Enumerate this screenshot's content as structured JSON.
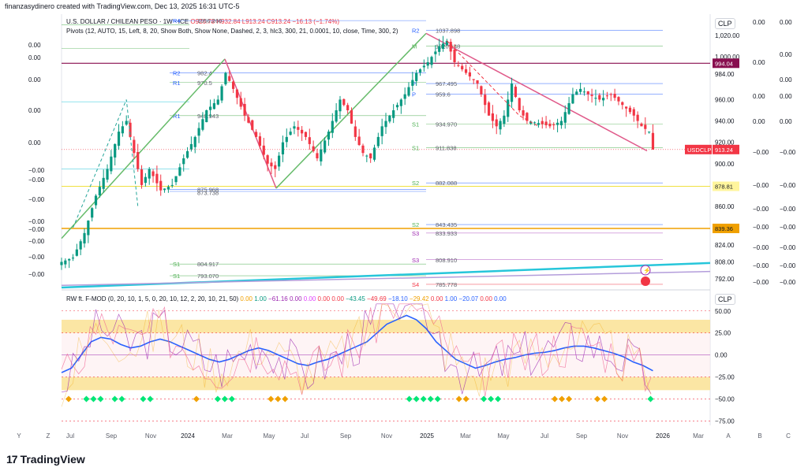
{
  "header": {
    "created_line": "finanzasydinero created with TradingView.com, Dec 13, 2025 16:31 UTC-5",
    "brand": "TradingView"
  },
  "legend": {
    "symbol": "U.S. DOLLAR / CHILEAN PESO · 1W · ICE",
    "ohlc": "O926.78 H932.84 L913.24 C913.24 −16.13 (−1.74%)",
    "pivots": "Pivots (12, AUTO, 15, Left, 8, 20, Show Both, Show None, Dashed, 2, 3, hlc3, 300, 21, 0.0001, 10, close, Time, 300, 2)",
    "indicator": "RW ft. F-MOD (0, 20, 10, 1, 5, 0, 20, 10, 12, 2, 20, 10, 21, 50)",
    "indicator_values": [
      {
        "v": "0.00",
        "c": "#f0a000"
      },
      {
        "v": "1.00",
        "c": "#089981"
      },
      {
        "v": "−61.16",
        "c": "#9c27b0"
      },
      {
        "v": "0.00",
        "c": "#9c27b0"
      },
      {
        "v": "0.00",
        "c": "#e040fb"
      },
      {
        "v": "0.00",
        "c": "#f23645"
      },
      {
        "v": "0.00",
        "c": "#f23645"
      },
      {
        "v": "−43.45",
        "c": "#089981"
      },
      {
        "v": "−49.69",
        "c": "#f23645"
      },
      {
        "v": "−18.10",
        "c": "#2962ff"
      },
      {
        "v": "−29.42",
        "c": "#f0a000"
      },
      {
        "v": "0.00",
        "c": "#f23645"
      },
      {
        "v": "1.00",
        "c": "#2962ff"
      },
      {
        "v": "−20.07",
        "c": "#2962ff"
      },
      {
        "v": "0.00",
        "c": "#f23645"
      },
      {
        "v": "0.00",
        "c": "#2962ff"
      }
    ]
  },
  "currency": "CLP",
  "colors": {
    "up": "#089981",
    "down": "#f23645",
    "pink": "#e05a8a",
    "trend": "#26c6da",
    "green": "#4caf50"
  },
  "price_boxes": [
    {
      "label": "994.04",
      "value": 994.04,
      "bg": "#880e4f",
      "text": "light"
    },
    {
      "label": "USDCLP",
      "value": 913.24,
      "bg": "#f23645",
      "text": "light"
    },
    {
      "label": "913.24",
      "value": 913.24,
      "bg": "#f23645",
      "text": "light"
    },
    {
      "label": "878.81",
      "value": 878.81,
      "bg": "#fff59d",
      "text": "dark"
    },
    {
      "label": "839.36",
      "value": 839.36,
      "bg": "#f0a000",
      "text": "dark"
    }
  ],
  "chart_data": [
    {
      "type": "candlestick",
      "title": "U.S. DOLLAR / CHILEAN PESO · 1W · ICE",
      "ylim": [
        784,
        1040
      ],
      "y_ticks": [
        "1,020.00",
        "1,000.00",
        "984.00",
        "960.00",
        "940.00",
        "920.00",
        "900.00",
        "880.00",
        "860.00",
        "840.00",
        "824.00",
        "808.00",
        "792.00"
      ],
      "x_ticks": [
        "Y",
        "Z",
        "Jul",
        "Sep",
        "Nov",
        "2024",
        "Mar",
        "May",
        "Jul",
        "Sep",
        "Nov",
        "2025",
        "Mar",
        "May",
        "Jul",
        "Sep",
        "Nov",
        "2026",
        "Mar",
        "A",
        "B",
        "C"
      ],
      "close_path": [
        {
          "t": 0,
          "v": 808
        },
        {
          "t": 3,
          "v": 812
        },
        {
          "t": 6,
          "v": 835
        },
        {
          "t": 9,
          "v": 870
        },
        {
          "t": 12,
          "v": 895
        },
        {
          "t": 15,
          "v": 930
        },
        {
          "t": 17,
          "v": 940
        },
        {
          "t": 19,
          "v": 910
        },
        {
          "t": 21,
          "v": 880
        },
        {
          "t": 23,
          "v": 895
        },
        {
          "t": 26,
          "v": 875
        },
        {
          "t": 29,
          "v": 880
        },
        {
          "t": 32,
          "v": 905
        },
        {
          "t": 35,
          "v": 925
        },
        {
          "t": 38,
          "v": 950
        },
        {
          "t": 41,
          "v": 960
        },
        {
          "t": 43,
          "v": 985
        },
        {
          "t": 45,
          "v": 970
        },
        {
          "t": 48,
          "v": 945
        },
        {
          "t": 51,
          "v": 925
        },
        {
          "t": 54,
          "v": 900
        },
        {
          "t": 56,
          "v": 895
        },
        {
          "t": 58,
          "v": 920
        },
        {
          "t": 61,
          "v": 935
        },
        {
          "t": 64,
          "v": 925
        },
        {
          "t": 67,
          "v": 905
        },
        {
          "t": 70,
          "v": 930
        },
        {
          "t": 73,
          "v": 960
        },
        {
          "t": 75,
          "v": 950
        },
        {
          "t": 77,
          "v": 925
        },
        {
          "t": 79,
          "v": 910
        },
        {
          "t": 81,
          "v": 905
        },
        {
          "t": 84,
          "v": 935
        },
        {
          "t": 87,
          "v": 950
        },
        {
          "t": 90,
          "v": 965
        },
        {
          "t": 93,
          "v": 985
        },
        {
          "t": 96,
          "v": 995
        },
        {
          "t": 99,
          "v": 1010
        },
        {
          "t": 101,
          "v": 1015
        },
        {
          "t": 103,
          "v": 995
        },
        {
          "t": 106,
          "v": 985
        },
        {
          "t": 109,
          "v": 975
        },
        {
          "t": 112,
          "v": 945
        },
        {
          "t": 114,
          "v": 935
        },
        {
          "t": 116,
          "v": 945
        },
        {
          "t": 118,
          "v": 975
        },
        {
          "t": 120,
          "v": 950
        },
        {
          "t": 122,
          "v": 940
        },
        {
          "t": 125,
          "v": 938
        },
        {
          "t": 128,
          "v": 935
        },
        {
          "t": 131,
          "v": 940
        },
        {
          "t": 134,
          "v": 965
        },
        {
          "t": 136,
          "v": 970
        },
        {
          "t": 138,
          "v": 965
        },
        {
          "t": 141,
          "v": 960
        },
        {
          "t": 144,
          "v": 965
        },
        {
          "t": 147,
          "v": 955
        },
        {
          "t": 150,
          "v": 945
        },
        {
          "t": 152,
          "v": 935
        },
        {
          "t": 154,
          "v": 930
        },
        {
          "t": 155,
          "v": 913.24
        }
      ],
      "pivot_labels": [
        {
          "label": "R4",
          "value": 1034
        },
        {
          "label": "1056.260",
          "value": 1034
        },
        {
          "label": "R2",
          "value": 1025
        },
        {
          "label": "1037.898",
          "value": 1025
        },
        {
          "label": "R2",
          "value": 985
        },
        {
          "label": "982.4",
          "value": 985
        },
        {
          "label": "R1",
          "value": 976
        },
        {
          "label": "970.5",
          "value": 976
        },
        {
          "label": "R1",
          "value": 945
        },
        {
          "label": "948.943",
          "value": 945
        },
        {
          "label": "P",
          "value": 975
        },
        {
          "label": "967.495",
          "value": 975
        },
        {
          "label": "P",
          "value": 965
        },
        {
          "label": "959.6",
          "value": 965
        },
        {
          "label": "S1",
          "value": 937
        },
        {
          "label": "934.970",
          "value": 937
        },
        {
          "label": "S1",
          "value": 915
        },
        {
          "label": "911.838",
          "value": 915
        },
        {
          "label": "875.968",
          "value": 876
        },
        {
          "label": "873.738",
          "value": 874
        },
        {
          "label": "S2",
          "value": 882
        },
        {
          "label": "882.088",
          "value": 882
        },
        {
          "label": "S2",
          "value": 843
        },
        {
          "label": "843.435",
          "value": 843
        },
        {
          "label": "S3",
          "value": 835
        },
        {
          "label": "833.933",
          "value": 835
        },
        {
          "label": "S1",
          "value": 806
        },
        {
          "label": "804.917",
          "value": 806
        },
        {
          "label": "S3",
          "value": 810
        },
        {
          "label": "808.910",
          "value": 810
        },
        {
          "label": "S1",
          "value": 795
        },
        {
          "label": "793.070",
          "value": 795
        },
        {
          "label": "S4",
          "value": 787
        },
        {
          "label": "785.778",
          "value": 787
        },
        {
          "label": "M",
          "value": 1010
        },
        {
          "label": "1020.148",
          "value": 1010
        }
      ],
      "left_scale_labels": [
        "0.00",
        "0.00",
        "0.00",
        "0.00",
        "0.00",
        "−0.00",
        "−0.00",
        "−0.00",
        "−0.00",
        "−0.00",
        "−0.00",
        "−0.00",
        "−0.00"
      ],
      "right_scale_a": [
        "0.00",
        "0.00",
        "0.00",
        "0.00",
        "−0.00",
        "−0.00",
        "−0.00",
        "−0.00",
        "−0.00",
        "−0.00",
        "−0.00"
      ],
      "right_scale_b": [
        "0.00",
        "0.00",
        "0.00",
        "0.00",
        "0.00",
        "−0.00",
        "−0.00",
        "−0.00",
        "−0.00",
        "−0.00",
        "−0.00",
        "−0.00"
      ]
    },
    {
      "type": "line",
      "title": "RW ft. F-MOD",
      "ylim": [
        -80,
        65
      ],
      "y_ticks": [
        "50.00",
        "25.00",
        "0.00",
        "−25.00",
        "−50.00",
        "−75.00"
      ],
      "series": [
        {
          "values": [
            -20,
            -15,
            0,
            15,
            20,
            18,
            12,
            8,
            10,
            15,
            18,
            15,
            10,
            5,
            0,
            -5,
            -8,
            -5,
            0,
            5,
            8,
            5,
            0,
            -5,
            -10,
            -12,
            -8,
            -5,
            0,
            5,
            10,
            15,
            25,
            35,
            40,
            45,
            40,
            30,
            15,
            5,
            -5,
            -10,
            -15,
            -12,
            -8,
            -5,
            -3,
            0,
            2,
            3,
            5,
            8,
            10,
            10,
            8,
            5,
            2,
            -2,
            -8,
            -12,
            -18
          ]
        }
      ]
    }
  ]
}
